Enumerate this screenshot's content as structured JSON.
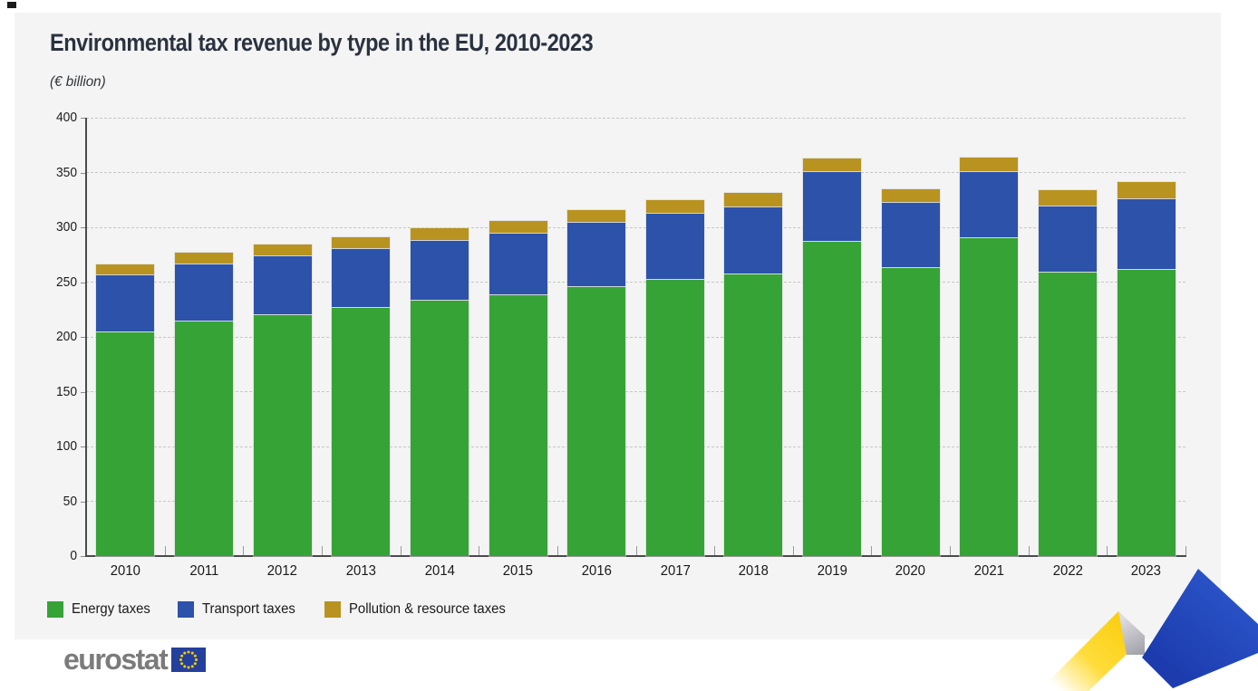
{
  "header": {
    "title": "Environmental tax revenue by type in the EU, 2010-2023",
    "subtitle": "(€ billion)"
  },
  "chart_data": {
    "type": "bar",
    "stacked": true,
    "title": "Environmental tax revenue by type in the EU, 2010-2023",
    "unit": "€ billion",
    "categories": [
      "2010",
      "2011",
      "2012",
      "2013",
      "2014",
      "2015",
      "2016",
      "2017",
      "2018",
      "2019",
      "2020",
      "2021",
      "2022",
      "2023"
    ],
    "series": [
      {
        "name": "Energy taxes",
        "color": "#36a336",
        "values": [
          205,
          215,
          221,
          228,
          234,
          239,
          247,
          253,
          258,
          288,
          264,
          291,
          260,
          262
        ]
      },
      {
        "name": "Transport taxes",
        "color": "#2d52aa",
        "values": [
          52,
          52,
          53,
          53,
          54,
          56,
          58,
          60,
          61,
          63,
          59,
          60,
          60,
          64
        ]
      },
      {
        "name": "Pollution & resource taxes",
        "color": "#b8931f",
        "values": [
          9,
          10,
          10,
          10,
          11,
          11,
          11,
          12,
          12,
          12,
          12,
          13,
          14,
          15
        ]
      }
    ],
    "totals": [
      266,
      277,
      284,
      291,
      299,
      306,
      316,
      325,
      331,
      363,
      335,
      364,
      334,
      341
    ],
    "ylim": [
      0,
      400
    ],
    "yticks": [
      0,
      50,
      100,
      150,
      200,
      250,
      300,
      350,
      400
    ],
    "xlabel": "",
    "ylabel": "",
    "grid": "horizontal-dashed",
    "legend_position": "bottom-left"
  },
  "branding": {
    "logo_text": "eurostat",
    "flag_blue": "#24409c",
    "star_yellow": "#ffcc00"
  },
  "decoration": {
    "ribbon_yellow": "#ffd617",
    "ribbon_gray": "#b2b2b9",
    "ribbon_blue": "#2450c0"
  },
  "colors": {
    "panel": "#f4f4f4",
    "gridline": "#c7c7c7",
    "axis": "#4a4a4a",
    "title_text": "#2a3240"
  }
}
